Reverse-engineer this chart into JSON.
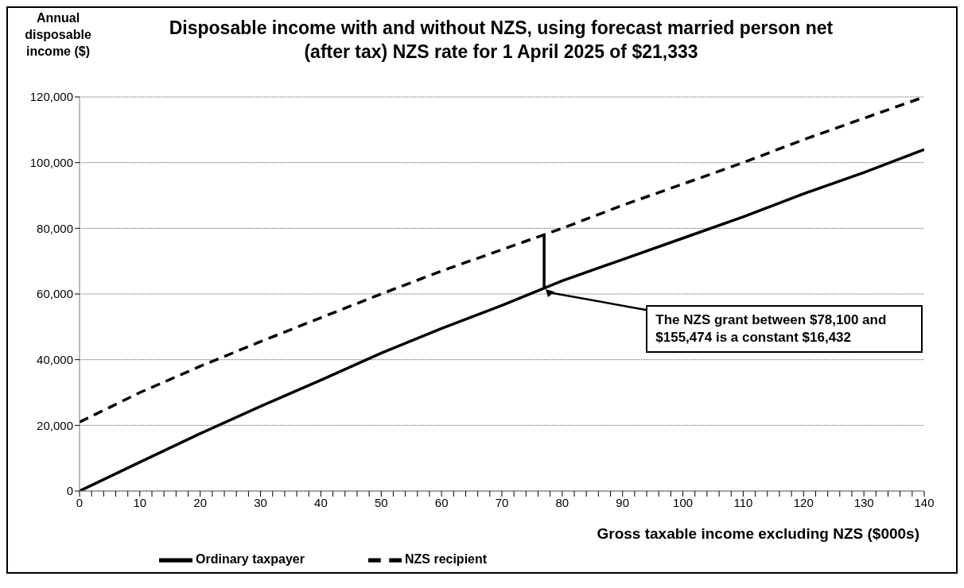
{
  "chart_data": {
    "type": "line",
    "title": "Disposable income with and without NZS, using forecast married person net (after tax) NZS rate for 1 April 2025 of $21,333",
    "ylabel": "Annual disposable income ($)",
    "xlabel": "Gross taxable income excluding NZS ($000s)",
    "xlim": [
      0,
      140
    ],
    "xticks": [
      0,
      {
        "value": 2,
        "label": null
      },
      {
        "value": 4,
        "label": null
      },
      {
        "value": 6,
        "label": null
      },
      {
        "value": 8,
        "label": null
      },
      10,
      {
        "value": 12,
        "label": null
      },
      {
        "value": 14,
        "label": null
      },
      {
        "value": 16,
        "label": null
      },
      {
        "value": 18,
        "label": null
      },
      20,
      {
        "value": 22,
        "label": null
      },
      {
        "value": 24,
        "label": null
      },
      {
        "value": 26,
        "label": null
      },
      {
        "value": 28,
        "label": null
      },
      30,
      {
        "value": 32,
        "label": null
      },
      {
        "value": 34,
        "label": null
      },
      {
        "value": 36,
        "label": null
      },
      {
        "value": 38,
        "label": null
      },
      40,
      {
        "value": 42,
        "label": null
      },
      {
        "value": 44,
        "label": null
      },
      {
        "value": 46,
        "label": null
      },
      {
        "value": 48,
        "label": null
      },
      50,
      {
        "value": 52,
        "label": null
      },
      {
        "value": 54,
        "label": null
      },
      {
        "value": 56,
        "label": null
      },
      {
        "value": 58,
        "label": null
      },
      60,
      {
        "value": 62,
        "label": null
      },
      {
        "value": 64,
        "label": null
      },
      {
        "value": 66,
        "label": null
      },
      {
        "value": 68,
        "label": null
      },
      70,
      {
        "value": 72,
        "label": null
      },
      {
        "value": 74,
        "label": null
      },
      {
        "value": 76,
        "label": null
      },
      {
        "value": 78,
        "label": null
      },
      80,
      {
        "value": 82,
        "label": null
      },
      {
        "value": 84,
        "label": null
      },
      {
        "value": 86,
        "label": null
      },
      {
        "value": 88,
        "label": null
      },
      90,
      {
        "value": 92,
        "label": null
      },
      {
        "value": 94,
        "label": null
      },
      {
        "value": 96,
        "label": null
      },
      {
        "value": 98,
        "label": null
      },
      100,
      {
        "value": 102,
        "label": null
      },
      {
        "value": 104,
        "label": null
      },
      {
        "value": 106,
        "label": null
      },
      {
        "value": 108,
        "label": null
      },
      110,
      {
        "value": 112,
        "label": null
      },
      {
        "value": 114,
        "label": null
      },
      {
        "value": 116,
        "label": null
      },
      {
        "value": 118,
        "label": null
      },
      120,
      {
        "value": 122,
        "label": null
      },
      {
        "value": 124,
        "label": null
      },
      {
        "value": 126,
        "label": null
      },
      {
        "value": 128,
        "label": null
      },
      130,
      {
        "value": 132,
        "label": null
      },
      {
        "value": 134,
        "label": null
      },
      {
        "value": 136,
        "label": null
      },
      {
        "value": 138,
        "label": null
      },
      140
    ],
    "ylim": [
      0,
      120000
    ],
    "yticks": [
      0,
      {
        "value": 20000,
        "label": "20,000"
      },
      {
        "value": 40000,
        "label": "40,000"
      },
      {
        "value": 60000,
        "label": "60,000"
      },
      {
        "value": 80000,
        "label": "80,000"
      },
      {
        "value": 100000,
        "label": "100,000"
      },
      {
        "value": 120000,
        "label": "120,000"
      }
    ],
    "grid": "y",
    "legend": "bottom",
    "marker": "none",
    "series": [
      {
        "name": "Ordinary taxpayer",
        "color": "#000000",
        "line_style": "solid",
        "x": [
          0,
          10,
          20,
          30,
          40,
          50,
          60,
          70,
          80,
          90,
          100,
          110,
          120,
          130,
          140
        ],
        "values": [
          0,
          8800,
          17500,
          25800,
          33800,
          42000,
          49500,
          56500,
          64000,
          70500,
          77000,
          83500,
          90500,
          97000,
          104000
        ]
      },
      {
        "name": "NZS recipient",
        "color": "#000000",
        "line_style": "dashed",
        "x": [
          0,
          10,
          20,
          30,
          40,
          50,
          60,
          70,
          80,
          90,
          100,
          110,
          120,
          130,
          140
        ],
        "values": [
          21000,
          30000,
          38000,
          45500,
          52800,
          60000,
          67000,
          73500,
          80000,
          87000,
          93500,
          100000,
          107000,
          113500,
          120000
        ]
      },
      {
        "color": "#000000",
        "line_style": "solid",
        "x": [
          77,
          77
        ],
        "values": [
          62000,
          78400
        ]
      }
    ],
    "annotations": [
      {
        "text": "The NZS grant between $78,100 and $155,474 is a constant $16,432",
        "x": 77,
        "y": 62000
      }
    ]
  }
}
